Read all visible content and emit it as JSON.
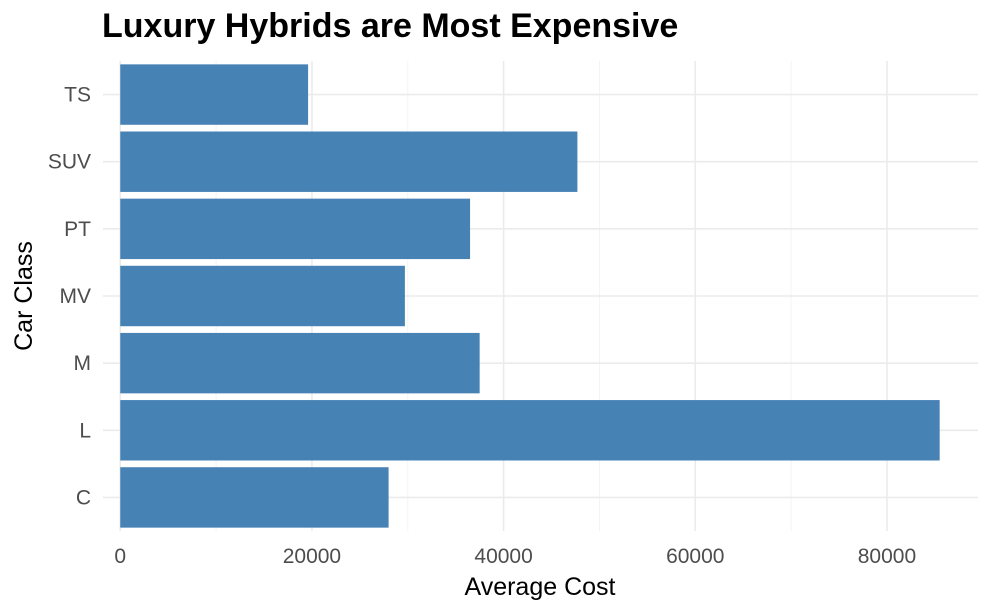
{
  "chart_data": {
    "type": "bar",
    "orientation": "horizontal",
    "title": "Luxury Hybrids are Most Expensive",
    "xlabel": "Average Cost",
    "ylabel": "Car Class",
    "categories": [
      "C",
      "L",
      "M",
      "MV",
      "PT",
      "SUV",
      "TS"
    ],
    "values": [
      28000,
      85500,
      37500,
      29700,
      36500,
      47700,
      19600
    ],
    "xlim": [
      -1800,
      89500
    ],
    "x_ticks": [
      0,
      20000,
      40000,
      60000,
      80000
    ],
    "x_tick_labels": [
      "0",
      "20000",
      "40000",
      "60000",
      "80000"
    ],
    "bar_color": "#4682b4",
    "grid": true,
    "legend": "none"
  }
}
